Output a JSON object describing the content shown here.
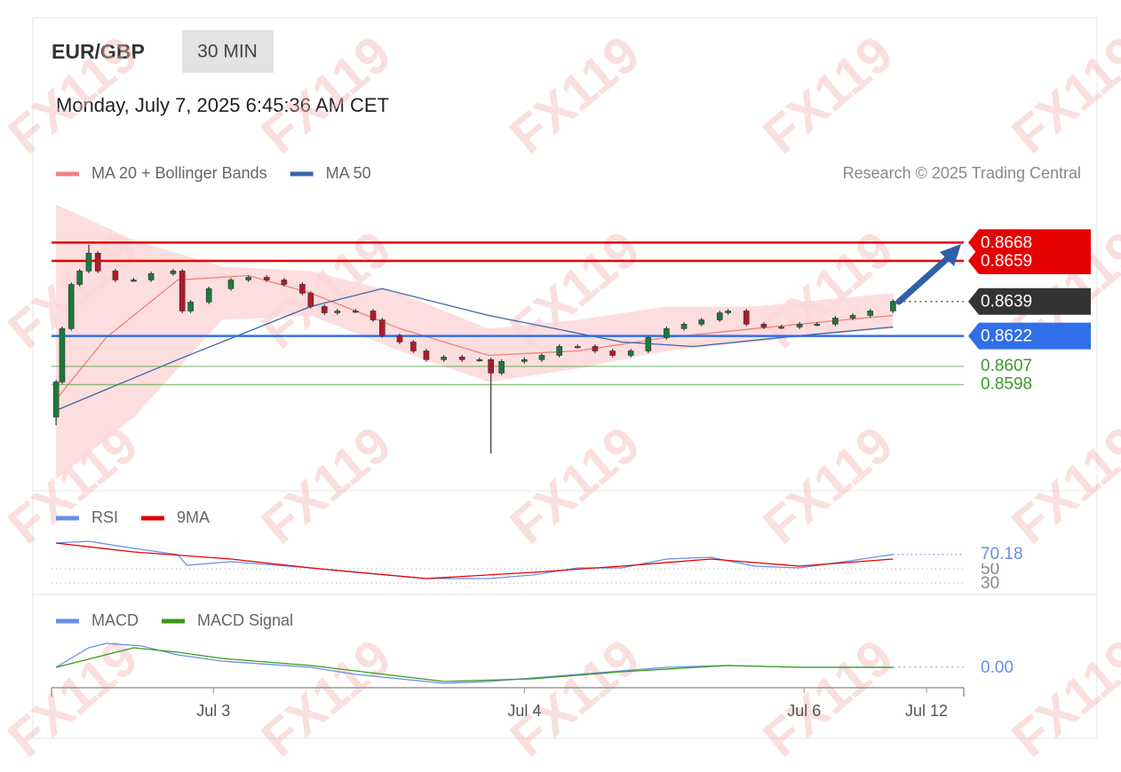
{
  "header": {
    "symbol": "EUR/GBP",
    "interval": "30 MIN",
    "timestamp": "Monday, July 7, 2025 6:45:36 AM CET",
    "credit": "Research © 2025 Trading Central"
  },
  "watermark": "FX119",
  "chart_data": [
    {
      "type": "candlestick",
      "x": [
        0.6,
        1.4,
        2.6,
        3.7,
        4.9,
        6.1,
        8.4,
        10.8,
        13.1,
        16,
        17.2,
        18.3,
        20.7,
        23.6,
        25.9,
        28.3,
        30.6,
        33,
        34.1,
        35.9,
        37.6,
        40,
        42.3,
        43.5,
        45.8,
        47.6,
        49.3,
        51.6,
        54,
        56.3,
        57.8,
        59.2,
        62.2,
        64.5,
        66.8,
        69.2,
        71.5,
        73.8,
        76.2,
        78.5,
        80.9,
        83.2,
        85.5,
        87.9,
        89,
        91.4,
        93.7,
        96,
        98.4,
        100.7,
        103.1,
        105.4,
        107.7,
        110.7
      ],
      "open": [
        0.8582,
        0.85993,
        0.86256,
        0.86474,
        0.8654,
        0.86628,
        0.8654,
        0.86496,
        0.86496,
        0.86527,
        0.8654,
        0.86343,
        0.86387,
        0.86453,
        0.86496,
        0.86509,
        0.86496,
        0.86474,
        0.86431,
        0.86365,
        0.86334,
        0.86343,
        0.86343,
        0.86299,
        0.86221,
        0.8619,
        0.86146,
        0.86103,
        0.86116,
        0.86103,
        0.86103,
        0.86037,
        0.86094,
        0.86103,
        0.86124,
        0.86168,
        0.86168,
        0.86146,
        0.86124,
        0.86146,
        0.86212,
        0.86256,
        0.86278,
        0.86299,
        0.86334,
        0.86343,
        0.86278,
        0.86264,
        0.86264,
        0.86278,
        0.86278,
        0.86308,
        0.86321,
        0.86343
      ],
      "high": [
        0.86003,
        0.86266,
        0.86484,
        0.8655,
        0.8667,
        0.86638,
        0.8655,
        0.86506,
        0.86537,
        0.8655,
        0.8655,
        0.86397,
        0.86463,
        0.86506,
        0.86519,
        0.86519,
        0.86506,
        0.86484,
        0.86441,
        0.86375,
        0.86353,
        0.86353,
        0.86353,
        0.86309,
        0.86231,
        0.862,
        0.86156,
        0.86126,
        0.86126,
        0.86113,
        0.86113,
        0.86104,
        0.86113,
        0.86134,
        0.86178,
        0.86178,
        0.86178,
        0.86156,
        0.86156,
        0.86222,
        0.86266,
        0.86288,
        0.86309,
        0.86344,
        0.86353,
        0.86353,
        0.86288,
        0.86274,
        0.86288,
        0.86288,
        0.86318,
        0.86331,
        0.86353,
        0.864
      ],
      "low": [
        0.8578,
        0.85983,
        0.86246,
        0.86464,
        0.8653,
        0.8653,
        0.86486,
        0.86486,
        0.86486,
        0.86517,
        0.86333,
        0.86333,
        0.86377,
        0.86443,
        0.86486,
        0.86486,
        0.86464,
        0.86421,
        0.86355,
        0.86324,
        0.86324,
        0.86333,
        0.86289,
        0.86211,
        0.8618,
        0.86136,
        0.86093,
        0.86093,
        0.86093,
        0.86093,
        0.8564,
        0.86027,
        0.86084,
        0.86093,
        0.86114,
        0.86158,
        0.86136,
        0.86114,
        0.86114,
        0.86136,
        0.86202,
        0.86246,
        0.86268,
        0.86289,
        0.86324,
        0.86268,
        0.86254,
        0.86254,
        0.86254,
        0.86268,
        0.86268,
        0.86298,
        0.86311,
        0.86333
      ],
      "close": [
        0.85993,
        0.86256,
        0.86474,
        0.8654,
        0.86628,
        0.8654,
        0.86496,
        0.86496,
        0.86527,
        0.8654,
        0.86343,
        0.86387,
        0.86453,
        0.86496,
        0.86509,
        0.86496,
        0.86474,
        0.86431,
        0.86365,
        0.86334,
        0.86343,
        0.86343,
        0.86299,
        0.86221,
        0.8619,
        0.86146,
        0.86103,
        0.86116,
        0.86103,
        0.86103,
        0.86037,
        0.86094,
        0.86103,
        0.86124,
        0.86168,
        0.86168,
        0.86146,
        0.86124,
        0.86146,
        0.86212,
        0.86256,
        0.86278,
        0.86299,
        0.86334,
        0.86343,
        0.86278,
        0.86264,
        0.86264,
        0.86278,
        0.86278,
        0.86308,
        0.86321,
        0.86343,
        0.8639
      ],
      "up_color": "#1b7a3a",
      "down_color": "#b2182b",
      "xlim": [
        0,
        120
      ],
      "ylim": [
        0.8547,
        0.8687
      ],
      "xticks": [
        {
          "value": 21.3,
          "label": "Jul 3"
        },
        {
          "value": 62.2,
          "label": "Jul 4"
        },
        {
          "value": 99,
          "label": "Jul 6"
        },
        {
          "value": 115.1,
          "label": "Jul 12"
        }
      ],
      "bands": {
        "color": "#fcd6d6",
        "x": [
          0.6,
          10.8,
          22.4,
          34.1,
          45.8,
          57.5,
          69.2,
          80.9,
          92.5,
          104.2,
          110.7
        ],
        "upper": [
          0.86868,
          0.86693,
          0.86562,
          0.8654,
          0.86431,
          0.86256,
          0.86299,
          0.86365,
          0.86365,
          0.86409,
          0.86431
        ],
        "lower": [
          0.85512,
          0.85818,
          0.86299,
          0.86321,
          0.86146,
          0.85993,
          0.86059,
          0.86146,
          0.8619,
          0.86234,
          0.86256
        ]
      },
      "series": [
        {
          "name": "MA 20 + Bollinger Bands",
          "color": "#f08080",
          "x": [
            0.6,
            7.2,
            16.6,
            25.9,
            34.1,
            45.8,
            57.5,
            69.2,
            80.9,
            92.5,
            104.2,
            110.7
          ],
          "values": [
            0.85906,
            0.86212,
            0.86496,
            0.86518,
            0.86431,
            0.86256,
            0.86124,
            0.86146,
            0.86212,
            0.86256,
            0.86299,
            0.86321
          ]
        },
        {
          "name": "MA 50",
          "color": "#3a64a8",
          "x": [
            0.6,
            16.6,
            34.1,
            43.5,
            57.5,
            75,
            84.4,
            98.4,
            110.7
          ],
          "values": [
            0.85853,
            0.86103,
            0.86365,
            0.86453,
            0.86321,
            0.8619,
            0.86168,
            0.86221,
            0.86264
          ]
        }
      ],
      "levels": [
        {
          "value": 0.8668,
          "color": "#e60000",
          "line": "solid",
          "box": true
        },
        {
          "value": 0.8659,
          "color": "#e60000",
          "line": "solid",
          "box": true
        },
        {
          "value": 0.8639,
          "color": "#333333",
          "line": "dotted",
          "box": true
        },
        {
          "value": 0.8622,
          "color": "#2f6fe8",
          "line": "solid",
          "box": true
        },
        {
          "value": 0.8607,
          "color": "#3c9a2c",
          "line": "solid",
          "box": false
        },
        {
          "value": 0.8598,
          "color": "#3c9a2c",
          "line": "solid",
          "box": false
        }
      ]
    },
    {
      "type": "line",
      "ylim": [
        20,
        100
      ],
      "yticks": [
        30,
        50
      ],
      "grid": true,
      "series": [
        {
          "name": "RSI",
          "color": "#6a8ee8",
          "x": [
            0.6,
            4.9,
            10.8,
            16.6,
            17.8,
            23.6,
            34.1,
            40,
            49.3,
            57.5,
            63.3,
            69.2,
            75,
            80.9,
            86.7,
            92.5,
            98.4,
            104.2,
            110.7
          ],
          "values": [
            86.25,
            88.75,
            78.75,
            70,
            55,
            60,
            51.25,
            45,
            36.25,
            36.25,
            41.25,
            51.25,
            51.25,
            63.75,
            66.25,
            53.75,
            51.25,
            60,
            70.18
          ]
        },
        {
          "name": "9MA",
          "color": "#e60000",
          "x": [
            0.6,
            10.8,
            23.6,
            34.1,
            49.3,
            63.3,
            75,
            86.7,
            98.4,
            110.7
          ],
          "values": [
            86.25,
            73.75,
            63.75,
            51.25,
            36.25,
            45,
            53.75,
            63.75,
            53.75,
            63.75
          ]
        }
      ]
    },
    {
      "type": "line",
      "ylim": [
        -0.00115,
        0.0021
      ],
      "yticks": [
        {
          "value": 0,
          "label": "0.00"
        }
      ],
      "grid": false,
      "series": [
        {
          "name": "MACD",
          "color": "#6a8ee8",
          "x": [
            0.6,
            4.9,
            7.2,
            11.9,
            16.6,
            22.4,
            34.1,
            40,
            51.6,
            57.5,
            69.2,
            80.9,
            89,
            98.4,
            110.7
          ],
          "values": [
            0,
            0.0011,
            0.00135,
            0.0012,
            0.0007,
            0.00035,
            0,
            -0.0004,
            -0.0009,
            -0.0008,
            -0.0004,
            0,
            0.0001,
            0,
            0
          ]
        },
        {
          "name": "MACD Signal",
          "color": "#3a9a1a",
          "x": [
            0.6,
            10.8,
            16.6,
            22.4,
            34.1,
            45.8,
            51.6,
            63.3,
            75,
            89,
            98.4,
            110.7
          ],
          "values": [
            0,
            0.0011,
            0.00085,
            0.0005,
            0.0001,
            -0.0005,
            -0.0008,
            -0.00065,
            -0.00025,
            0.0001,
            0,
            0
          ]
        }
      ]
    }
  ]
}
